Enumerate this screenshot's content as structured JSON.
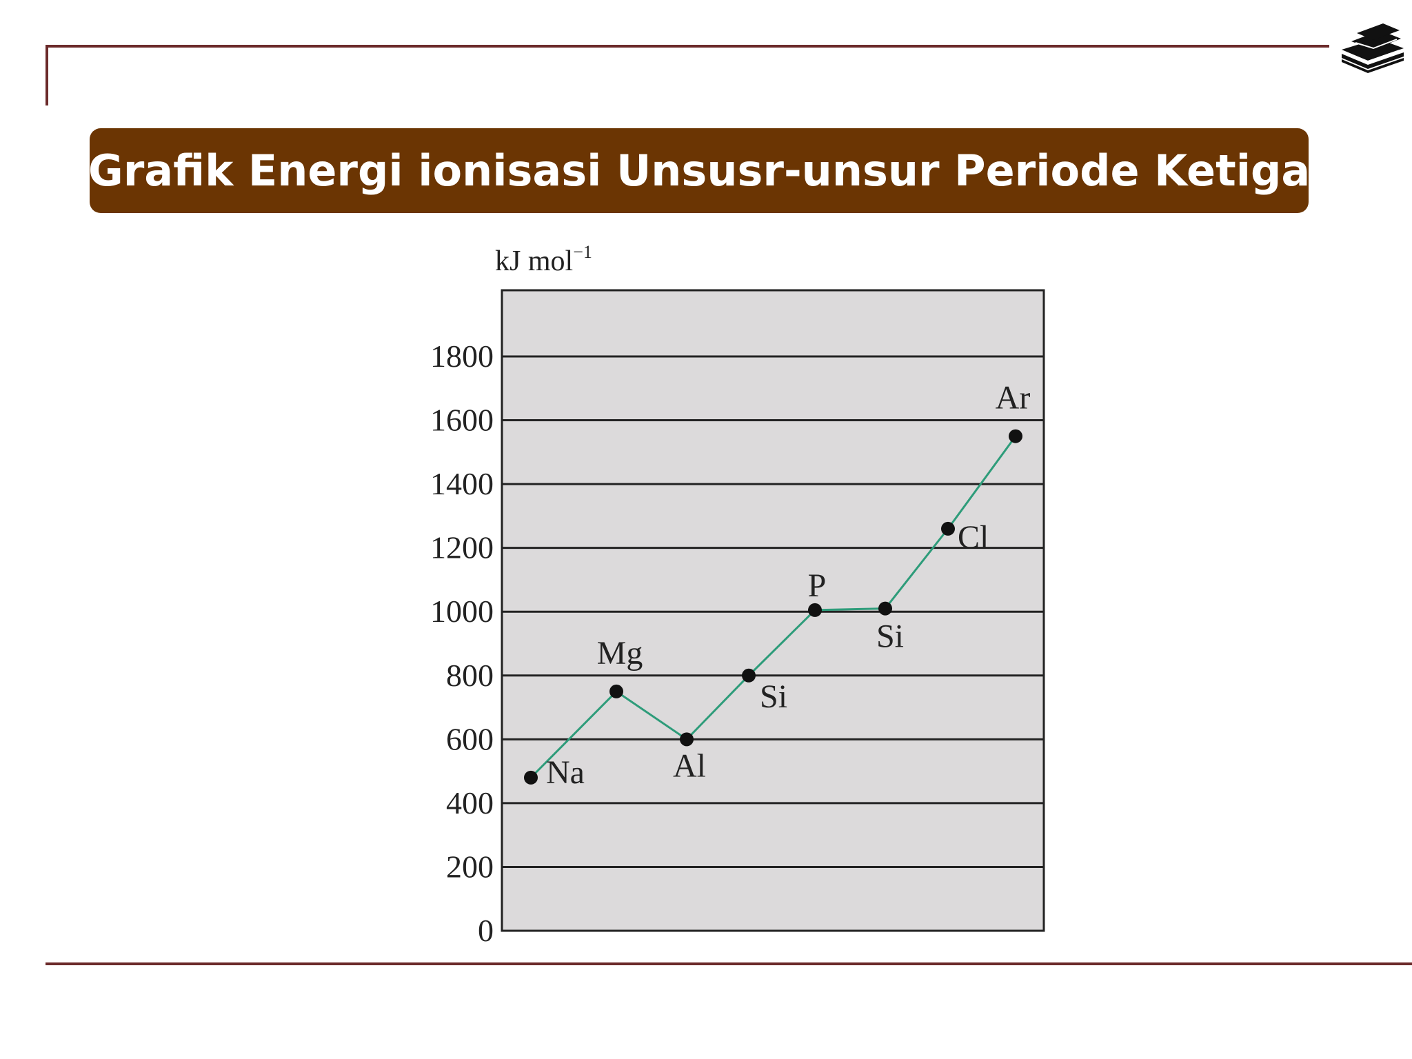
{
  "title": "Grafik Energi ionisasi Unsusr-unsur Periode Ketiga",
  "logo": "stacked-books-icon",
  "colors": {
    "accent": "#6b3503",
    "rule": "#6b2a2a",
    "plot_bg": "#dcdadb",
    "line": "#2e9c7a",
    "marker": "#111111"
  },
  "chart_data": {
    "type": "line",
    "ylabel_main": "kJ mol",
    "ylabel_sup": "−1",
    "ylim": [
      0,
      2000
    ],
    "yticks": [
      0,
      200,
      400,
      600,
      800,
      1000,
      1200,
      1400,
      1600,
      1800
    ],
    "grid": true,
    "points": [
      {
        "label": "Na",
        "value": 480
      },
      {
        "label": "Mg",
        "value": 750
      },
      {
        "label": "Al",
        "value": 600
      },
      {
        "label": "Si",
        "value": 800
      },
      {
        "label": "P",
        "value": 1005
      },
      {
        "label": "Si",
        "value": 1010
      },
      {
        "label": "Cl",
        "value": 1260
      },
      {
        "label": "Ar",
        "value": 1550
      }
    ]
  }
}
